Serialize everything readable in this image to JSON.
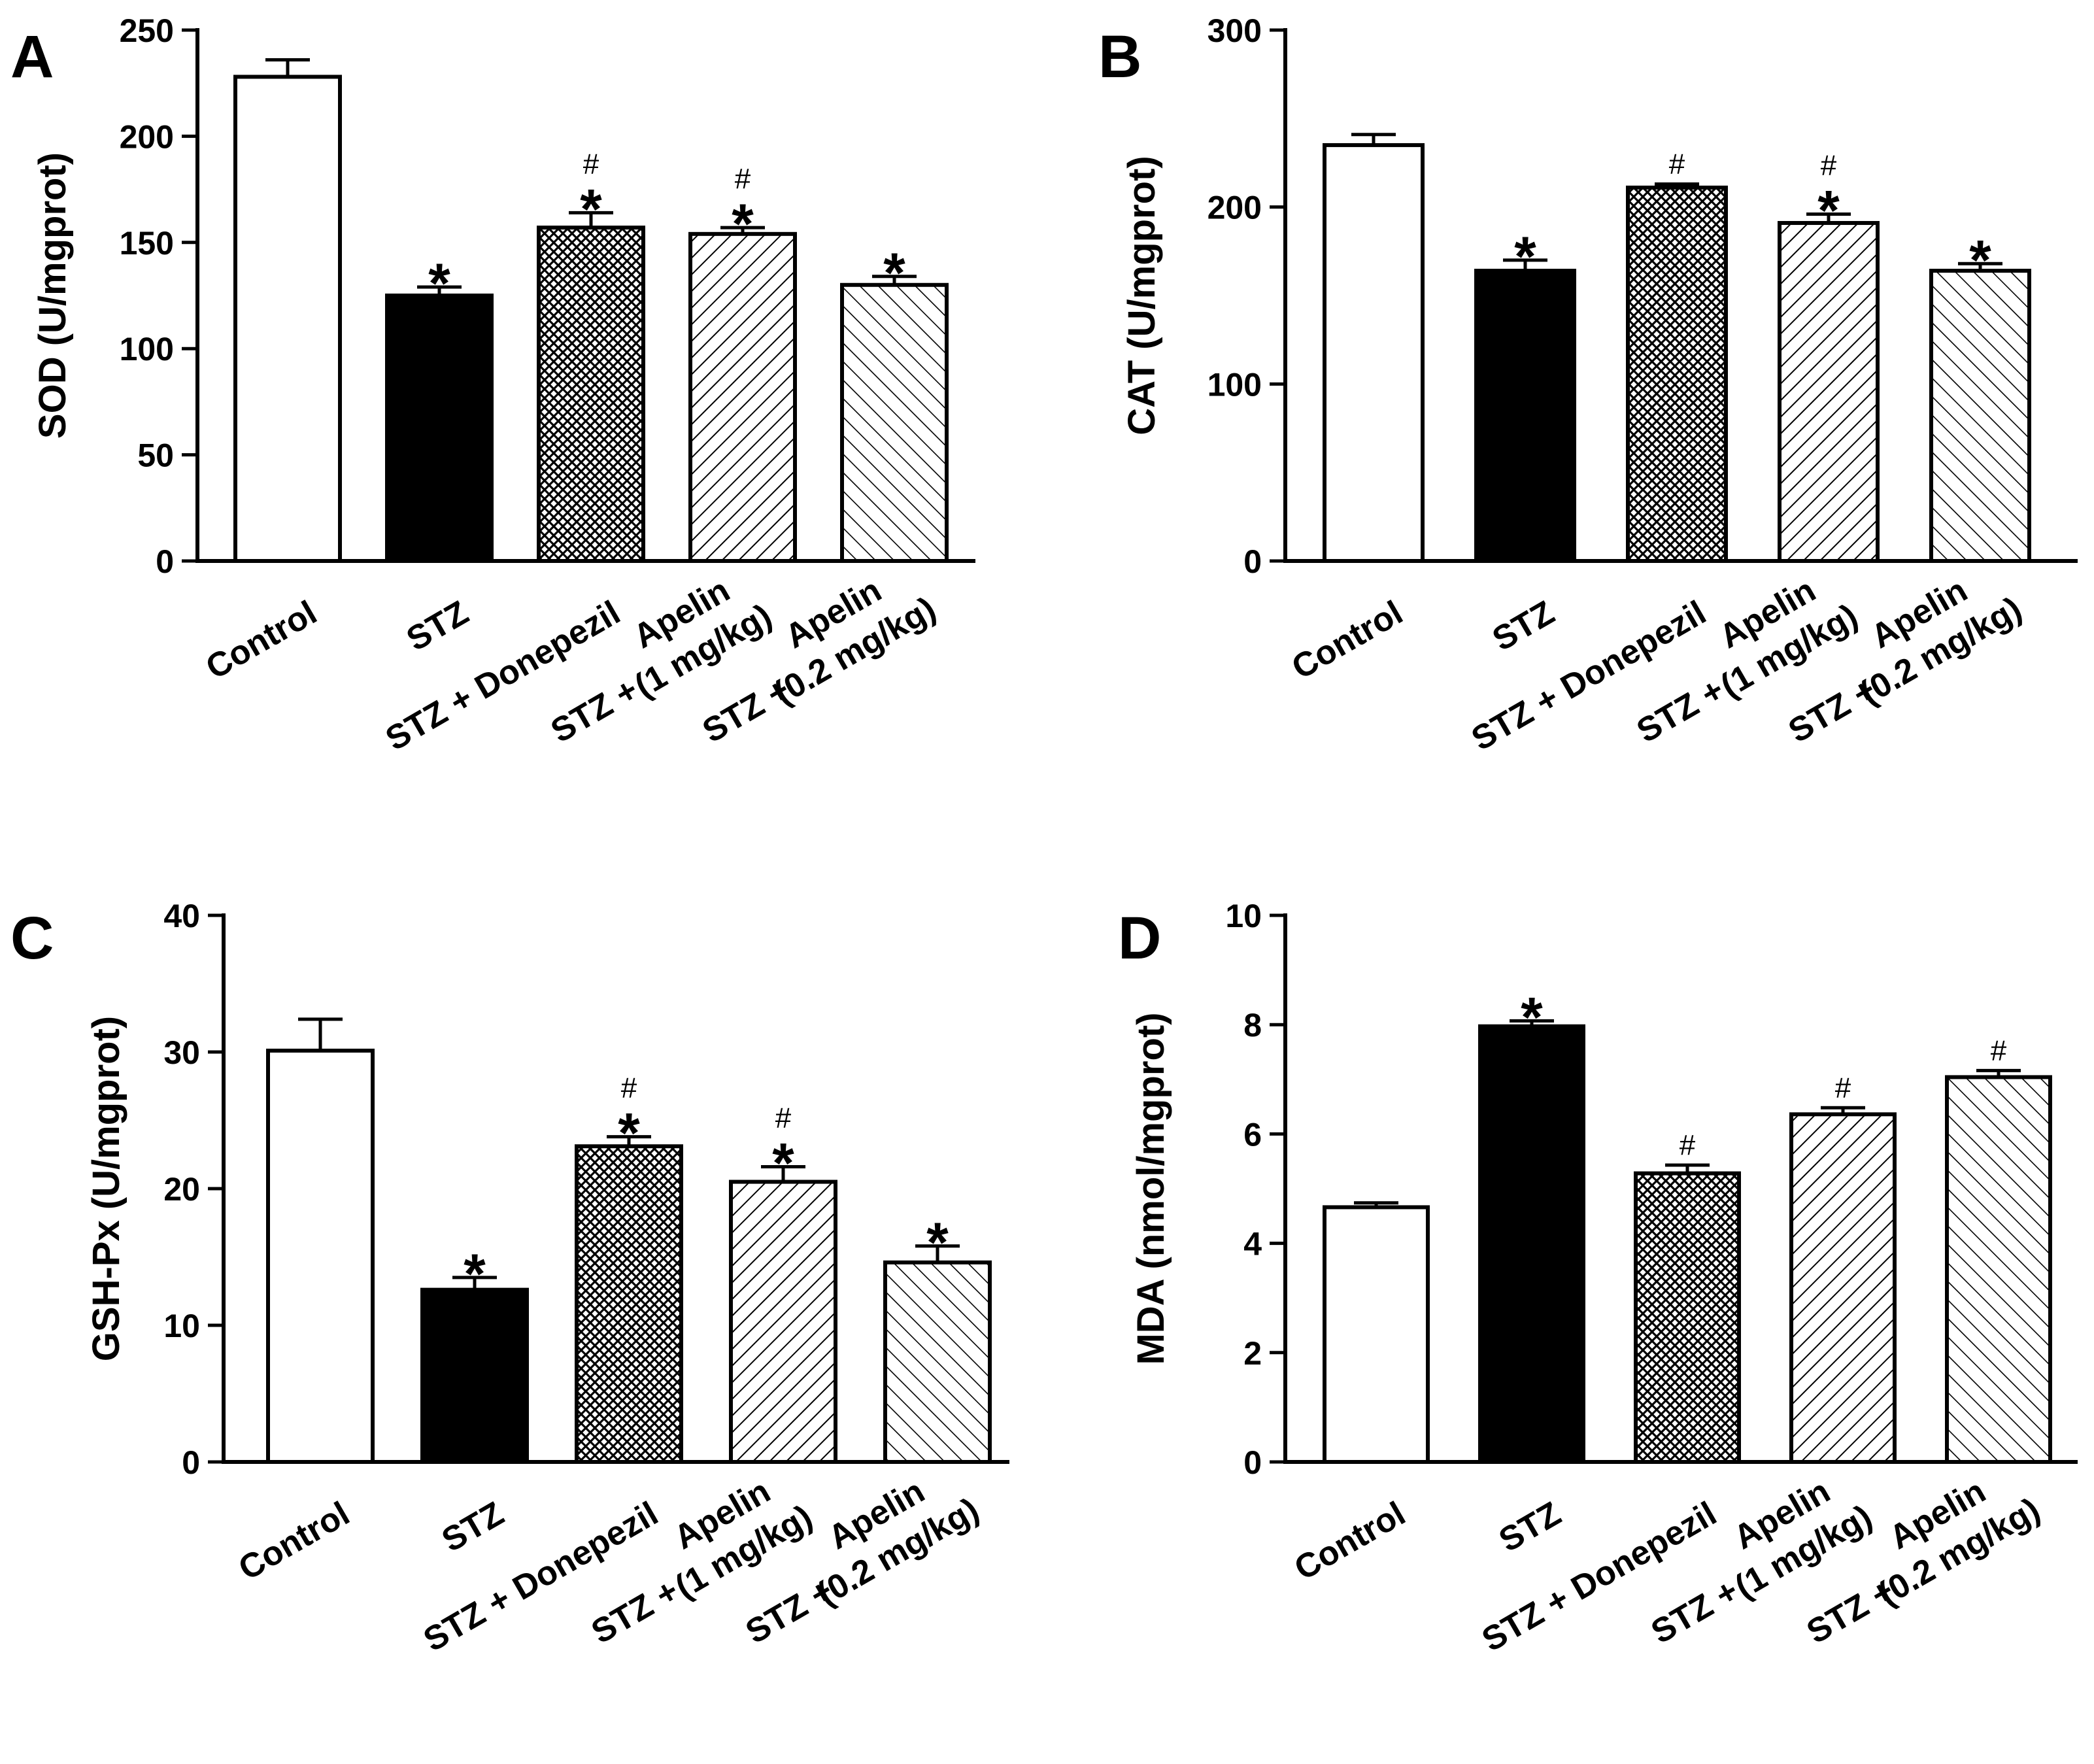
{
  "chart_data": [
    {
      "panel": "A",
      "type": "bar",
      "ylabel": "SOD (U/mgprot)",
      "ylim": [
        0,
        250
      ],
      "yticks": [
        0,
        50,
        100,
        150,
        200,
        250
      ],
      "categories": [
        [
          "Control"
        ],
        [
          "STZ"
        ],
        [
          "STZ + Donepezil"
        ],
        [
          "STZ +",
          "Apelin",
          "(1 mg/kg)"
        ],
        [
          "STZ +",
          "Apelin",
          "(0.2 mg/kg)"
        ]
      ],
      "values": [
        228,
        125,
        157,
        154,
        130
      ],
      "errors": [
        8,
        4,
        7,
        3,
        4
      ],
      "stars": [
        "",
        "*",
        "*",
        "*",
        "*"
      ],
      "hashes": [
        "",
        "",
        "#",
        "#",
        ""
      ],
      "patterns": [
        "white",
        "black",
        "crosshatch",
        "diag-dense",
        "diag-sparse"
      ]
    },
    {
      "panel": "B",
      "type": "bar",
      "ylabel": "CAT (U/mgprot)",
      "ylim": [
        0,
        300
      ],
      "yticks": [
        0,
        100,
        200,
        300
      ],
      "categories": [
        [
          "Control"
        ],
        [
          "STZ"
        ],
        [
          "STZ + Donepezil"
        ],
        [
          "STZ +",
          "Apelin",
          "(1 mg/kg)"
        ],
        [
          "STZ +",
          "Apelin",
          "(0.2 mg/kg)"
        ]
      ],
      "values": [
        235,
        164,
        211,
        191,
        164
      ],
      "errors": [
        6,
        6,
        2,
        5,
        4
      ],
      "stars": [
        "",
        "*",
        "",
        "*",
        "*"
      ],
      "hashes": [
        "",
        "",
        "#",
        "#",
        ""
      ],
      "patterns": [
        "white",
        "black",
        "crosshatch",
        "diag-dense",
        "diag-sparse"
      ]
    },
    {
      "panel": "C",
      "type": "bar",
      "ylabel": "GSH-Px (U/mgprot)",
      "ylim": [
        0,
        40
      ],
      "yticks": [
        0,
        10,
        20,
        30,
        40
      ],
      "categories": [
        [
          "Control"
        ],
        [
          "STZ"
        ],
        [
          "STZ + Donepezil"
        ],
        [
          "STZ +",
          "Apelin",
          "(1 mg/kg)"
        ],
        [
          "STZ +",
          "Apelin",
          "(0.2 mg/kg)"
        ]
      ],
      "values": [
        30.1,
        12.6,
        23.1,
        20.5,
        14.6
      ],
      "errors": [
        2.3,
        0.9,
        0.7,
        1.1,
        1.2
      ],
      "stars": [
        "",
        "*",
        "*",
        "*",
        "*"
      ],
      "hashes": [
        "",
        "",
        "#",
        "#",
        ""
      ],
      "patterns": [
        "white",
        "black",
        "crosshatch",
        "diag-dense",
        "diag-sparse"
      ]
    },
    {
      "panel": "D",
      "type": "bar",
      "ylabel": "MDA (nmol/mgprot)",
      "ylim": [
        0,
        10
      ],
      "yticks": [
        0,
        2,
        4,
        6,
        8,
        10
      ],
      "categories": [
        [
          "Control"
        ],
        [
          "STZ"
        ],
        [
          "STZ + Donepezil"
        ],
        [
          "STZ +",
          "Apelin",
          "(1 mg/kg)"
        ],
        [
          "STZ +",
          "Apelin",
          "(0.2 mg/kg)"
        ]
      ],
      "values": [
        4.66,
        7.97,
        5.28,
        6.36,
        7.04
      ],
      "errors": [
        0.08,
        0.1,
        0.15,
        0.12,
        0.12
      ],
      "stars": [
        "",
        "*",
        "",
        "",
        ""
      ],
      "hashes": [
        "",
        "",
        "#",
        "#",
        "#"
      ],
      "patterns": [
        "white",
        "black",
        "crosshatch",
        "diag-dense",
        "diag-sparse"
      ]
    }
  ]
}
